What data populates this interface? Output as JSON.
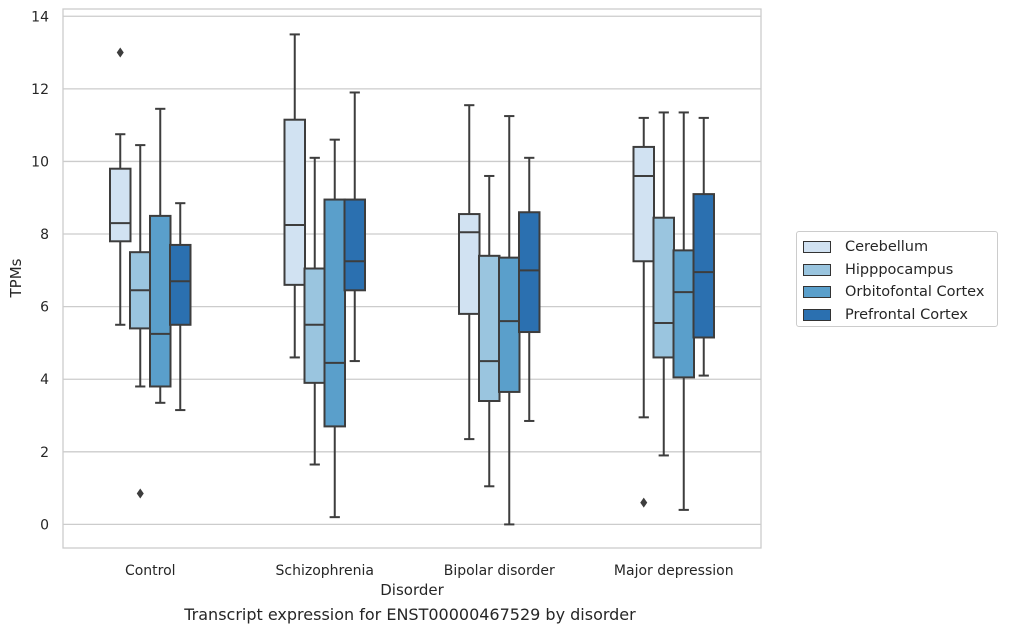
{
  "chart_data": {
    "type": "box",
    "caption": "Transcript expression for ENST00000467529 by disorder",
    "xlabel": "Disorder",
    "ylabel": "TPMs",
    "ylim": [
      -0.65,
      14.2
    ],
    "yticks": [
      0,
      2,
      4,
      6,
      8,
      10,
      12,
      14
    ],
    "grid": true,
    "legend_position": "right",
    "categories": [
      "Control",
      "Schizophrenia",
      "Bipolar disorder",
      "Major depression"
    ],
    "series": [
      {
        "name": "Cerebellum",
        "color": "#d1e2f2",
        "boxes": [
          {
            "whislo": 5.5,
            "q1": 7.8,
            "med": 8.3,
            "q3": 9.8,
            "whishi": 10.75,
            "fliers": [
              13.0
            ]
          },
          {
            "whislo": 4.6,
            "q1": 6.6,
            "med": 8.25,
            "q3": 11.15,
            "whishi": 13.5,
            "fliers": []
          },
          {
            "whislo": 2.35,
            "q1": 5.8,
            "med": 8.05,
            "q3": 8.55,
            "whishi": 11.55,
            "fliers": []
          },
          {
            "whislo": 2.95,
            "q1": 7.25,
            "med": 9.6,
            "q3": 10.4,
            "whishi": 11.2,
            "fliers": [
              0.6
            ]
          }
        ]
      },
      {
        "name": "Hipppocampus",
        "color": "#9ac5df",
        "boxes": [
          {
            "whislo": 3.8,
            "q1": 5.4,
            "med": 6.45,
            "q3": 7.5,
            "whishi": 10.45,
            "fliers": [
              0.85
            ]
          },
          {
            "whislo": 1.65,
            "q1": 3.9,
            "med": 5.5,
            "q3": 7.05,
            "whishi": 10.1,
            "fliers": []
          },
          {
            "whislo": 1.05,
            "q1": 3.4,
            "med": 4.5,
            "q3": 7.4,
            "whishi": 9.6,
            "fliers": []
          },
          {
            "whislo": 1.9,
            "q1": 4.6,
            "med": 5.55,
            "q3": 8.45,
            "whishi": 11.35,
            "fliers": []
          }
        ]
      },
      {
        "name": "Orbitofontal Cortex",
        "color": "#5a9fcb",
        "boxes": [
          {
            "whislo": 3.35,
            "q1": 3.8,
            "med": 5.25,
            "q3": 8.5,
            "whishi": 11.45,
            "fliers": []
          },
          {
            "whislo": 0.2,
            "q1": 2.7,
            "med": 4.45,
            "q3": 8.95,
            "whishi": 10.6,
            "fliers": []
          },
          {
            "whislo": 0.0,
            "q1": 3.65,
            "med": 5.6,
            "q3": 7.35,
            "whishi": 11.25,
            "fliers": []
          },
          {
            "whislo": 0.4,
            "q1": 4.05,
            "med": 6.4,
            "q3": 7.55,
            "whishi": 11.35,
            "fliers": []
          }
        ]
      },
      {
        "name": "Prefrontal Cortex",
        "color": "#2b70b0",
        "boxes": [
          {
            "whislo": 3.15,
            "q1": 5.5,
            "med": 6.7,
            "q3": 7.7,
            "whishi": 8.85,
            "fliers": []
          },
          {
            "whislo": 4.5,
            "q1": 6.45,
            "med": 7.25,
            "q3": 8.95,
            "whishi": 11.9,
            "fliers": []
          },
          {
            "whislo": 2.85,
            "q1": 5.3,
            "med": 7.0,
            "q3": 8.6,
            "whishi": 10.1,
            "fliers": []
          },
          {
            "whislo": 4.1,
            "q1": 5.15,
            "med": 6.95,
            "q3": 9.1,
            "whishi": 11.2,
            "fliers": []
          }
        ]
      }
    ]
  }
}
